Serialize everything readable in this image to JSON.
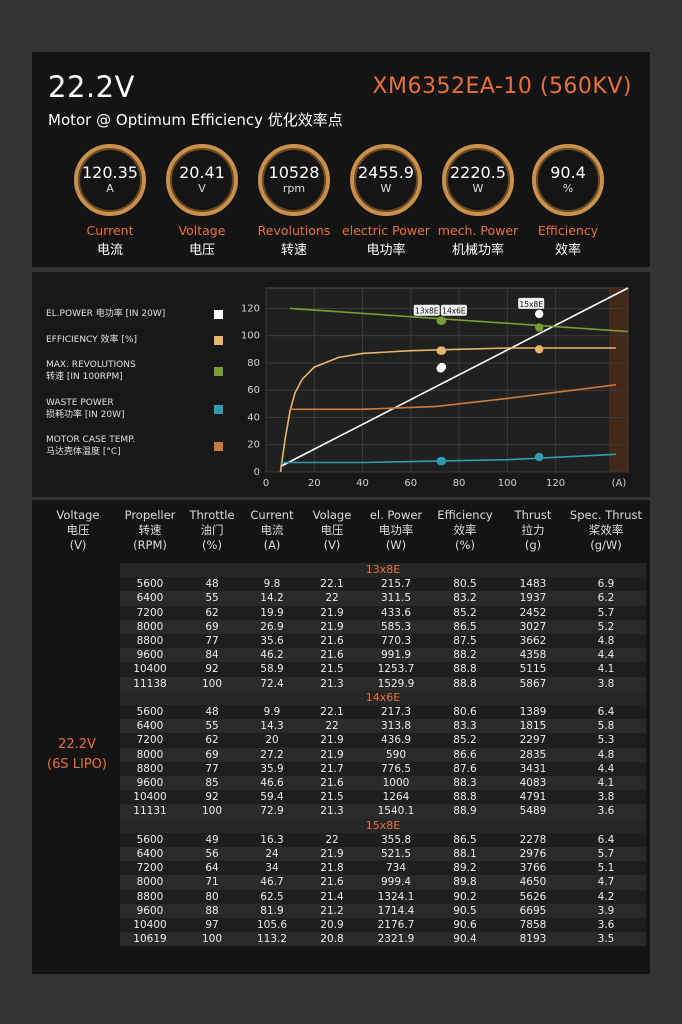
{
  "header": {
    "voltage": "22.2V",
    "model": "XM6352EA-10 (560KV)",
    "subtitle": "Motor @ Optimum Efficiency  优化效率点"
  },
  "metrics": [
    {
      "value": "120.35",
      "unit": "A",
      "en": "Current",
      "zh": "电流"
    },
    {
      "value": "20.41",
      "unit": "V",
      "en": "Voltage",
      "zh": "电压"
    },
    {
      "value": "10528",
      "unit": "rpm",
      "en": "Revolutions",
      "zh": "转速"
    },
    {
      "value": "2455.9",
      "unit": "W",
      "en": "electric Power",
      "zh": "电功率"
    },
    {
      "value": "2220.5",
      "unit": "W",
      "en": "mech. Power",
      "zh": "机械功率"
    },
    {
      "value": "90.4",
      "unit": "%",
      "en": "Efficiency",
      "zh": "效率"
    }
  ],
  "legend": [
    {
      "line1": "EL.POWER 电功率 [IN 20W]",
      "line2": "",
      "color": "#ffffff"
    },
    {
      "line1": "EFFICIENCY 效率 [%]",
      "line2": "",
      "color": "#e8b56a"
    },
    {
      "line1": "MAX. REVOLUTIONS",
      "line2": "转速 [IN 100RPM]",
      "color": "#7a9e34"
    },
    {
      "line1": "WASTE POWER",
      "line2": "损耗功率 [IN 20W]",
      "color": "#2f9bb5"
    },
    {
      "line1": "MOTOR CASE TEMP.",
      "line2": "马达壳体温度 [°C]",
      "color": "#c97a3a"
    }
  ],
  "chart_data": {
    "type": "line",
    "x_label": "(A)",
    "xlim": [
      0,
      150
    ],
    "ylim": [
      0,
      135
    ],
    "x_ticks": [
      0,
      20,
      40,
      60,
      80,
      100,
      120
    ],
    "y_ticks": [
      0,
      20,
      40,
      60,
      80,
      100,
      120
    ],
    "series": [
      {
        "name": "EL.POWER 电功率 [IN 20W]",
        "color": "#ffffff",
        "x": [
          6,
          150
        ],
        "y": [
          4,
          135
        ]
      },
      {
        "name": "EFFICIENCY 效率 [%]",
        "color": "#e8b56a",
        "x": [
          6,
          8,
          10,
          12,
          15,
          20,
          30,
          40,
          60,
          80,
          100,
          120,
          145
        ],
        "y": [
          0,
          25,
          45,
          58,
          68,
          77,
          84,
          87,
          89,
          90,
          91,
          91,
          91
        ]
      },
      {
        "name": "MAX. REVOLUTIONS 转速 [IN 100RPM]",
        "color": "#7a9e34",
        "x": [
          10,
          150
        ],
        "y": [
          120,
          103
        ]
      },
      {
        "name": "WASTE POWER 损耗功率 [IN 20W]",
        "color": "#2f9bb5",
        "x": [
          6,
          40,
          70,
          100,
          145
        ],
        "y": [
          7,
          7,
          8,
          9,
          13
        ]
      },
      {
        "name": "MOTOR CASE TEMP. 马达壳体温度 [°C]",
        "color": "#c97a3a",
        "x": [
          10,
          40,
          70,
          100,
          145
        ],
        "y": [
          46,
          46,
          48,
          54,
          64
        ]
      }
    ],
    "markers": [
      {
        "label": "13x8E",
        "x": 72.4,
        "points": [
          {
            "series": "EL.POWER 电功率 [IN 20W]",
            "y": 76
          },
          {
            "series": "EFFICIENCY 效率 [%]",
            "y": 89
          },
          {
            "series": "MAX. REVOLUTIONS 转速 [IN 100RPM]",
            "y": 111
          },
          {
            "series": "WASTE POWER 损耗功率 [IN 20W]",
            "y": 8
          }
        ]
      },
      {
        "label": "14x6E",
        "x": 72.9,
        "points": [
          {
            "series": "EL.POWER 电功率 [IN 20W]",
            "y": 77
          },
          {
            "series": "EFFICIENCY 效率 [%]",
            "y": 89
          },
          {
            "series": "MAX. REVOLUTIONS 转速 [IN 100RPM]",
            "y": 111
          },
          {
            "series": "WASTE POWER 损耗功率 [IN 20W]",
            "y": 8
          }
        ]
      },
      {
        "label": "15x8E",
        "x": 113.2,
        "points": [
          {
            "series": "EL.POWER 电功率 [IN 20W]",
            "y": 116
          },
          {
            "series": "EFFICIENCY 效率 [%]",
            "y": 90
          },
          {
            "series": "MAX. REVOLUTIONS 转速 [IN 100RPM]",
            "y": 106
          },
          {
            "series": "WASTE POWER 损耗功率 [IN 20W]",
            "y": 11
          }
        ]
      }
    ]
  },
  "table": {
    "voltage_label": "22.2V",
    "battery_label": "(6S LIPO)",
    "headers": [
      {
        "en": "Voltage",
        "zh": "电压",
        "unit": "(V)"
      },
      {
        "en": "Propeller",
        "zh": "转速",
        "unit": "(RPM)"
      },
      {
        "en": "Throttle",
        "zh": "油门",
        "unit": "(%)"
      },
      {
        "en": "Current",
        "zh": "电流",
        "unit": "(A)"
      },
      {
        "en": "Volage",
        "zh": "电压",
        "unit": "(V)"
      },
      {
        "en": "el. Power",
        "zh": "电功率",
        "unit": "(W)"
      },
      {
        "en": "Efficiency",
        "zh": "效率",
        "unit": "(%)"
      },
      {
        "en": "Thrust",
        "zh": "拉力",
        "unit": "(g)"
      },
      {
        "en": "Spec. Thrust",
        "zh": "桨效率",
        "unit": "(g/W)"
      }
    ],
    "groups": [
      {
        "name": "13x8E",
        "rows": [
          [
            "5600",
            "48",
            "9.8",
            "22.1",
            "215.7",
            "80.5",
            "1483",
            "6.9"
          ],
          [
            "6400",
            "55",
            "14.2",
            "22",
            "311.5",
            "83.2",
            "1937",
            "6.2"
          ],
          [
            "7200",
            "62",
            "19.9",
            "21.9",
            "433.6",
            "85.2",
            "2452",
            "5.7"
          ],
          [
            "8000",
            "69",
            "26.9",
            "21.9",
            "585.3",
            "86.5",
            "3027",
            "5.2"
          ],
          [
            "8800",
            "77",
            "35.6",
            "21.6",
            "770.3",
            "87.5",
            "3662",
            "4.8"
          ],
          [
            "9600",
            "84",
            "46.2",
            "21.6",
            "991.9",
            "88.2",
            "4358",
            "4.4"
          ],
          [
            "10400",
            "92",
            "58.9",
            "21.5",
            "1253.7",
            "88.8",
            "5115",
            "4.1"
          ],
          [
            "11138",
            "100",
            "72.4",
            "21.3",
            "1529.9",
            "88.8",
            "5867",
            "3.8"
          ]
        ]
      },
      {
        "name": "14x6E",
        "rows": [
          [
            "5600",
            "48",
            "9.9",
            "22.1",
            "217.3",
            "80.6",
            "1389",
            "6.4"
          ],
          [
            "6400",
            "55",
            "14.3",
            "22",
            "313.8",
            "83.3",
            "1815",
            "5.8"
          ],
          [
            "7200",
            "62",
            "20",
            "21.9",
            "436.9",
            "85.2",
            "2297",
            "5.3"
          ],
          [
            "8000",
            "69",
            "27.2",
            "21.9",
            "590",
            "86.6",
            "2835",
            "4.8"
          ],
          [
            "8800",
            "77",
            "35.9",
            "21.7",
            "776.5",
            "87.6",
            "3431",
            "4.4"
          ],
          [
            "9600",
            "85",
            "46.6",
            "21.6",
            "1000",
            "88.3",
            "4083",
            "4.1"
          ],
          [
            "10400",
            "92",
            "59.4",
            "21.5",
            "1264",
            "88.8",
            "4791",
            "3.8"
          ],
          [
            "11131",
            "100",
            "72.9",
            "21.3",
            "1540.1",
            "88.9",
            "5489",
            "3.6"
          ]
        ]
      },
      {
        "name": "15x8E",
        "rows": [
          [
            "5600",
            "49",
            "16.3",
            "22",
            "355.8",
            "86.5",
            "2278",
            "6.4"
          ],
          [
            "6400",
            "56",
            "24",
            "21.9",
            "521.5",
            "88.1",
            "2976",
            "5.7"
          ],
          [
            "7200",
            "64",
            "34",
            "21.8",
            "734",
            "89.2",
            "3766",
            "5.1"
          ],
          [
            "8000",
            "71",
            "46.7",
            "21.6",
            "999.4",
            "89.8",
            "4650",
            "4.7"
          ],
          [
            "8800",
            "80",
            "62.5",
            "21.4",
            "1324.1",
            "90.2",
            "5626",
            "4.2"
          ],
          [
            "9600",
            "88",
            "81.9",
            "21.2",
            "1714.4",
            "90.5",
            "6695",
            "3.9"
          ],
          [
            "10400",
            "97",
            "105.6",
            "20.9",
            "2176.7",
            "90.6",
            "7858",
            "3.6"
          ],
          [
            "10619",
            "100",
            "113.2",
            "20.8",
            "2321.9",
            "90.4",
            "8193",
            "3.5"
          ]
        ]
      }
    ]
  }
}
